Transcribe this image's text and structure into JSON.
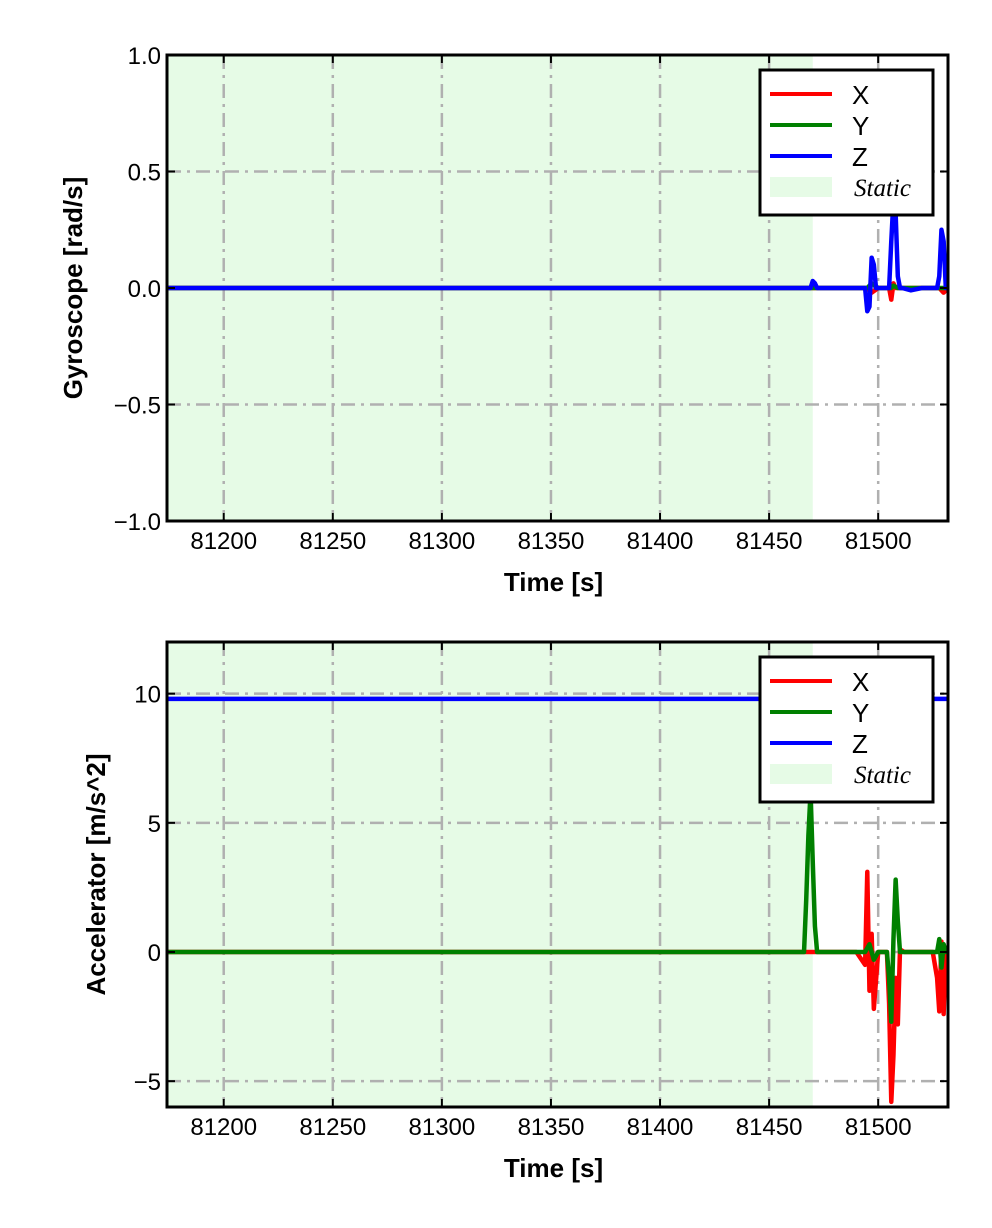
{
  "chart_data": [
    {
      "type": "line",
      "title": "",
      "xlabel": "Time [s]",
      "ylabel": "Gyroscope [rad/s]",
      "xlim": [
        81174,
        81532
      ],
      "ylim": [
        -1.0,
        1.0
      ],
      "xticks": [
        81200,
        81250,
        81300,
        81350,
        81400,
        81450,
        81500
      ],
      "xtick_labels": [
        "81200",
        "81250",
        "81300",
        "81350",
        "81400",
        "81450",
        "81500"
      ],
      "yticks": [
        -1.0,
        -0.5,
        0.0,
        0.5,
        1.0
      ],
      "ytick_labels": [
        "−1.0",
        "−0.5",
        "0.0",
        "0.5",
        "1.0"
      ],
      "grid": true,
      "legend_position": "top-right",
      "shaded_region": {
        "label": "Static",
        "x": [
          81174,
          81470
        ],
        "color": "#e6fbe6"
      },
      "series": [
        {
          "name": "X",
          "color": "#ff0000",
          "x": [
            81174,
            81470,
            81495,
            81497,
            81500,
            81505,
            81506,
            81507,
            81508,
            81512,
            81528,
            81530,
            81532
          ],
          "y": [
            0.0,
            0.0,
            0.0,
            -0.02,
            0.0,
            0.0,
            -0.05,
            0.02,
            0.0,
            0.0,
            0.0,
            -0.02,
            0.0
          ]
        },
        {
          "name": "Y",
          "color": "#008000",
          "x": [
            81174,
            81470,
            81495,
            81497,
            81500,
            81506,
            81507,
            81509,
            81512,
            81532
          ],
          "y": [
            0.0,
            0.0,
            0.0,
            0.02,
            0.0,
            0.0,
            0.01,
            0.0,
            0.0,
            0.0
          ],
          "visible": true
        },
        {
          "name": "Z",
          "color": "#0000ff",
          "x": [
            81174,
            81469,
            81470,
            81471,
            81472,
            81494,
            81495,
            81496,
            81497,
            81498,
            81499,
            81500,
            81505,
            81506,
            81507,
            81508,
            81509,
            81510,
            81511,
            81515,
            81520,
            81527,
            81528,
            81529,
            81530,
            81531,
            81532
          ],
          "y": [
            0.0,
            0.0,
            0.03,
            0.02,
            0.0,
            0.0,
            -0.1,
            -0.08,
            0.13,
            0.1,
            0.0,
            0.0,
            0.0,
            0.2,
            0.38,
            0.32,
            0.05,
            0.0,
            0.0,
            -0.01,
            0.0,
            0.0,
            0.05,
            0.25,
            0.2,
            0.0,
            0.0
          ]
        }
      ]
    },
    {
      "type": "line",
      "title": "",
      "xlabel": "Time [s]",
      "ylabel": "Accelerator [m/s^2]",
      "xlim": [
        81174,
        81532
      ],
      "ylim": [
        -6.0,
        12.0
      ],
      "xticks": [
        81200,
        81250,
        81300,
        81350,
        81400,
        81450,
        81500
      ],
      "xtick_labels": [
        "81200",
        "81250",
        "81300",
        "81350",
        "81400",
        "81450",
        "81500"
      ],
      "yticks": [
        -5,
        0,
        5,
        10
      ],
      "ytick_labels": [
        "−5",
        "0",
        "5",
        "10"
      ],
      "grid": true,
      "legend_position": "top-right",
      "shaded_region": {
        "label": "Static",
        "x": [
          81174,
          81470
        ],
        "color": "#e6fbe6"
      },
      "series": [
        {
          "name": "X",
          "color": "#ff0000",
          "x": [
            81174,
            81490,
            81494,
            81495,
            81496,
            81497,
            81498,
            81500,
            81504,
            81505,
            81506,
            81507,
            81508,
            81509,
            81510,
            81512,
            81525,
            81527,
            81528,
            81529,
            81530,
            81531,
            81532
          ],
          "y": [
            0.0,
            0.0,
            -0.5,
            3.1,
            -1.5,
            0.7,
            -2.2,
            0.0,
            0.0,
            -2.0,
            -5.8,
            -4.0,
            -1.0,
            -2.8,
            0.1,
            0.0,
            0.0,
            -1.0,
            -2.3,
            0.4,
            -2.4,
            0.0,
            0.0
          ]
        },
        {
          "name": "Y",
          "color": "#008000",
          "x": [
            81174,
            81466,
            81467,
            81468,
            81469,
            81470,
            81471,
            81472,
            81475,
            81494,
            81496,
            81498,
            81500,
            81504,
            81505,
            81506,
            81507,
            81508,
            81509,
            81510,
            81512,
            81527,
            81528,
            81529,
            81530,
            81531,
            81532
          ],
          "y": [
            0.0,
            0.0,
            2.0,
            4.5,
            6.2,
            3.5,
            1.0,
            0.0,
            0.0,
            0.0,
            0.3,
            -0.3,
            0.0,
            0.0,
            -1.0,
            -2.7,
            0.5,
            2.8,
            1.2,
            0.0,
            0.0,
            0.0,
            0.5,
            -0.6,
            0.3,
            0.0,
            0.0
          ]
        },
        {
          "name": "Z",
          "color": "#0000ff",
          "x": [
            81174,
            81532
          ],
          "y": [
            9.8,
            9.8
          ]
        }
      ]
    }
  ]
}
